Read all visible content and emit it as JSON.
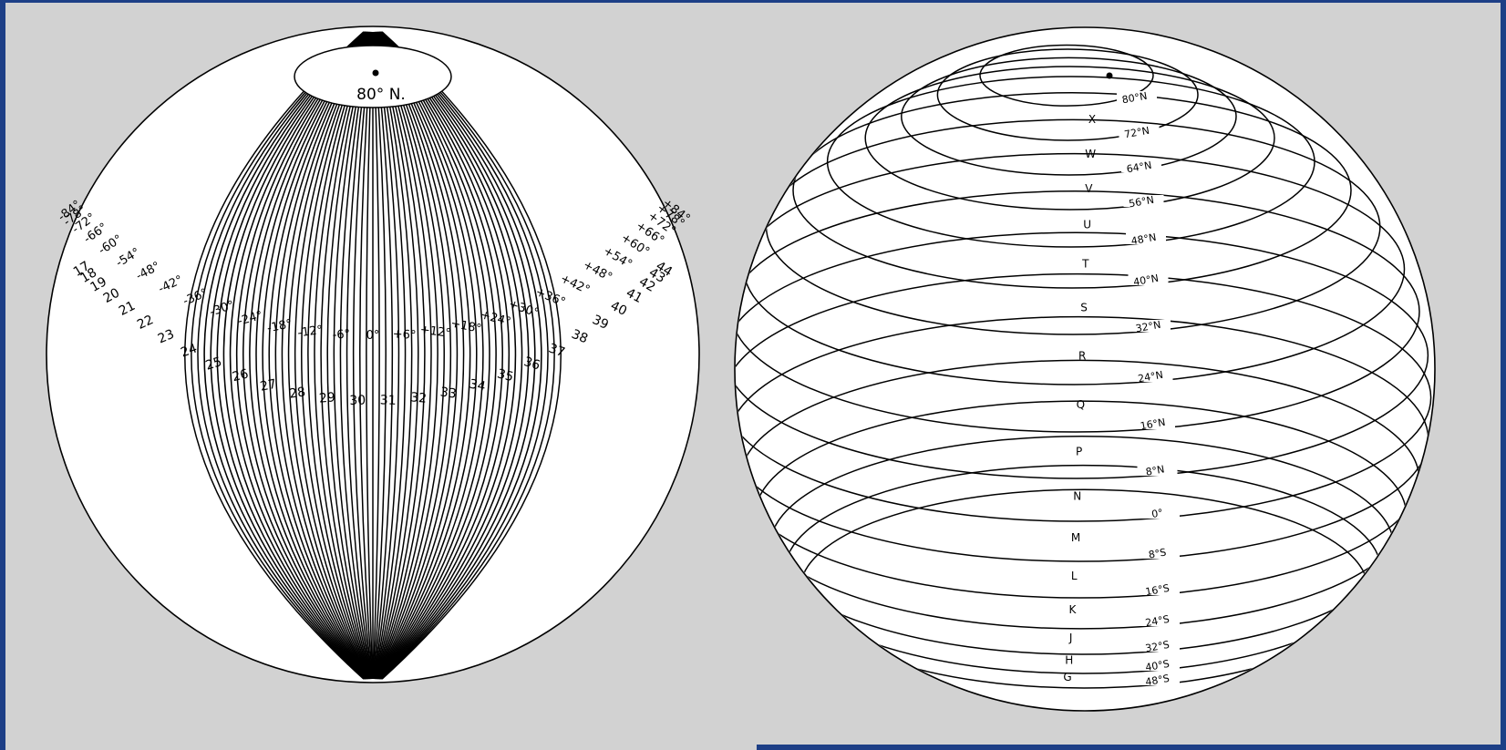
{
  "left_globe": {
    "cap_label": "80° N.",
    "longitude_labels": [
      "-84°",
      "-78°",
      "-72°",
      "-66°",
      "-60°",
      "-54°",
      "-48°",
      "-42°",
      "-36°",
      "-30°",
      "-24°",
      "-18°",
      "-12°",
      "-6°",
      "0°",
      "+6°",
      "+12°",
      "+18°",
      "+24°",
      "+30°",
      "+36°",
      "+42°",
      "+48°",
      "+54°",
      "+60°",
      "+66°",
      "+72°",
      "+78°",
      "+84°"
    ],
    "zone_numbers": [
      "17",
      "18",
      "19",
      "20",
      "21",
      "22",
      "23",
      "24",
      "25",
      "26",
      "27",
      "28",
      "29",
      "30",
      "31",
      "32",
      "33",
      "34",
      "35",
      "36",
      "37",
      "38",
      "39",
      "40",
      "41",
      "42",
      "43",
      "44"
    ]
  },
  "right_globe": {
    "latitude_labels": [
      "80°N",
      "72°N",
      "64°N",
      "56°N",
      "48°N",
      "40°N",
      "32°N",
      "24°N",
      "16°N",
      "8°N",
      "0°",
      "8°S",
      "16°S",
      "24°S",
      "32°S",
      "40°S",
      "48°S"
    ],
    "band_letters": [
      "X",
      "W",
      "V",
      "U",
      "T",
      "S",
      "R",
      "Q",
      "P",
      "N",
      "M",
      "L",
      "K",
      "J",
      "H",
      "G"
    ]
  }
}
